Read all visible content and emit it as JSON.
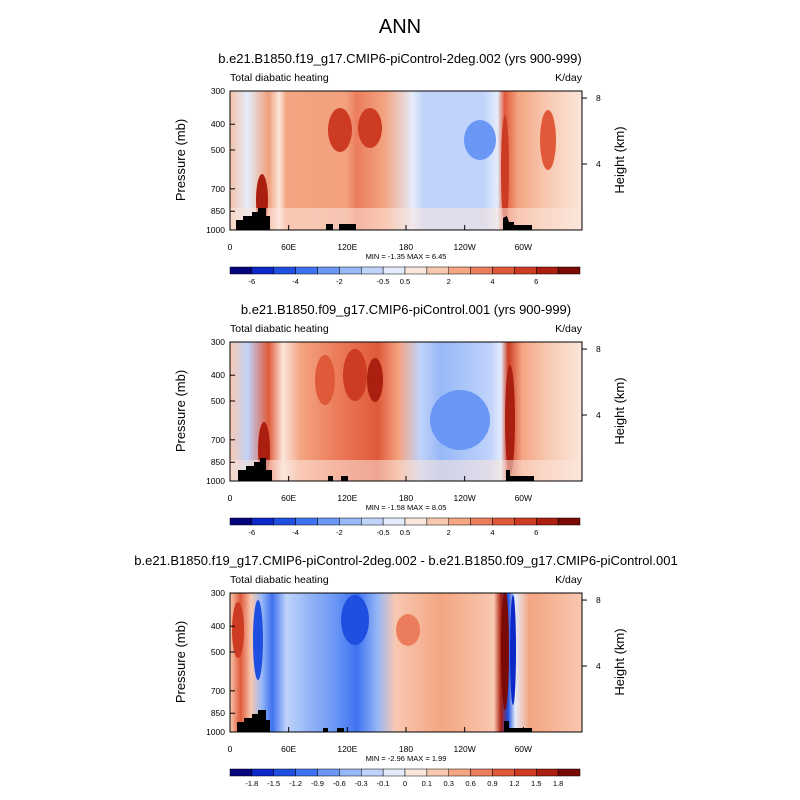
{
  "figure_title": "ANN",
  "chart_data": [
    {
      "type": "contour",
      "title": "b.e21.B1850.f19_g17.CMIP6-piControl-2deg.002 (yrs 900-999)",
      "left_string": "Total diabatic heating",
      "right_string": "K/day",
      "xlabel": "",
      "ylabel": "Pressure (mb)",
      "y2label": "Height (km)",
      "x_ticks": [
        "0",
        "60E",
        "120E",
        "180",
        "120W",
        "60W"
      ],
      "x_tick_lons": [
        0,
        60,
        120,
        180,
        240,
        300
      ],
      "xlim": [
        0,
        360
      ],
      "y_ticks": [
        "300",
        "400",
        "500",
        "700",
        "850",
        "1000"
      ],
      "y_tick_values": [
        300,
        400,
        500,
        700,
        850,
        1000
      ],
      "ylim": [
        1000,
        300
      ],
      "y2_ticks": [
        "8",
        "4"
      ],
      "y2_tick_values": [
        8,
        4
      ],
      "stats": "MIN =  -1.35  MAX =   6.45",
      "colorbar_labels": [
        "-6",
        "-4",
        "-2",
        "-0.5",
        "0.5",
        "2",
        "4",
        "6"
      ],
      "colorbar_colors": [
        "#06057d",
        "#0c28c8",
        "#1f4fe0",
        "#3f72f0",
        "#6a96f5",
        "#97b8f7",
        "#c0d3fa",
        "#e4ecfb",
        "#fbe6dc",
        "#f8c8b0",
        "#f4a582",
        "#ec7d5c",
        "#e05a3a",
        "#cc3b22",
        "#ab1f10",
        "#7a0a04"
      ]
    },
    {
      "type": "contour",
      "title": "b.e21.B1850.f09_g17.CMIP6-piControl.001 (yrs 900-999)",
      "left_string": "Total diabatic heating",
      "right_string": "K/day",
      "xlabel": "",
      "ylabel": "Pressure (mb)",
      "y2label": "Height (km)",
      "x_ticks": [
        "0",
        "60E",
        "120E",
        "180",
        "120W",
        "60W"
      ],
      "x_tick_lons": [
        0,
        60,
        120,
        180,
        240,
        300
      ],
      "xlim": [
        0,
        360
      ],
      "y_ticks": [
        "300",
        "400",
        "500",
        "700",
        "850",
        "1000"
      ],
      "y_tick_values": [
        300,
        400,
        500,
        700,
        850,
        1000
      ],
      "ylim": [
        1000,
        300
      ],
      "y2_ticks": [
        "8",
        "4"
      ],
      "y2_tick_values": [
        8,
        4
      ],
      "stats": "MIN =  -1.58  MAX =   8.05",
      "colorbar_labels": [
        "-6",
        "-4",
        "-2",
        "-0.5",
        "0.5",
        "2",
        "4",
        "6"
      ],
      "colorbar_colors": [
        "#06057d",
        "#0c28c8",
        "#1f4fe0",
        "#3f72f0",
        "#6a96f5",
        "#97b8f7",
        "#c0d3fa",
        "#e4ecfb",
        "#fbe6dc",
        "#f8c8b0",
        "#f4a582",
        "#ec7d5c",
        "#e05a3a",
        "#cc3b22",
        "#ab1f10",
        "#7a0a04"
      ]
    },
    {
      "type": "contour",
      "title": "b.e21.B1850.f19_g17.CMIP6-piControl-2deg.002 - b.e21.B1850.f09_g17.CMIP6-piControl.001",
      "left_string": "Total diabatic heating",
      "right_string": "K/day",
      "xlabel": "",
      "ylabel": "Pressure (mb)",
      "y2label": "Height (km)",
      "x_ticks": [
        "0",
        "60E",
        "120E",
        "180",
        "120W",
        "60W"
      ],
      "x_tick_lons": [
        0,
        60,
        120,
        180,
        240,
        300
      ],
      "xlim": [
        0,
        360
      ],
      "y_ticks": [
        "300",
        "400",
        "500",
        "700",
        "850",
        "1000"
      ],
      "y_tick_values": [
        300,
        400,
        500,
        700,
        850,
        1000
      ],
      "ylim": [
        1000,
        300
      ],
      "y2_ticks": [
        "8",
        "4"
      ],
      "y2_tick_values": [
        8,
        4
      ],
      "stats": "MIN =  -2.96  MAX =   1.99",
      "colorbar_labels": [
        "-1.8",
        "-1.5",
        "-1.2",
        "-0.9",
        "-0.6",
        "-0.3",
        "-0.1",
        "0",
        "0.1",
        "0.3",
        "0.6",
        "0.9",
        "1.2",
        "1.5",
        "1.8"
      ],
      "colorbar_colors": [
        "#06057d",
        "#0c28c8",
        "#1f4fe0",
        "#3f72f0",
        "#6a96f5",
        "#97b8f7",
        "#c0d3fa",
        "#e4ecfb",
        "#fbe6dc",
        "#f8c8b0",
        "#f4a582",
        "#ec7d5c",
        "#e05a3a",
        "#cc3b22",
        "#ab1f10",
        "#7a0a04"
      ]
    }
  ]
}
